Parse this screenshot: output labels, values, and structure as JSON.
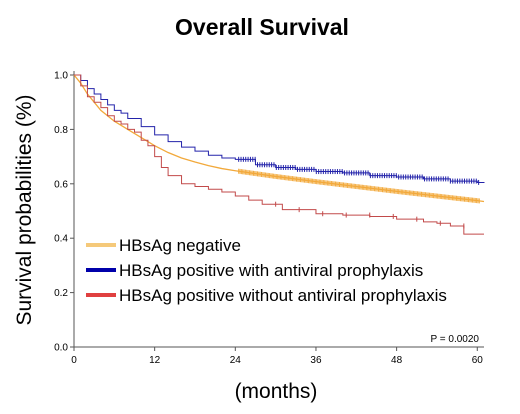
{
  "chart_data": {
    "type": "line",
    "title": "Overall Survival",
    "xlabel": "(months)",
    "ylabel": "Survival probabilities (%)",
    "xlim": [
      0,
      61
    ],
    "ylim": [
      0,
      1.0
    ],
    "x_ticks": [
      0,
      12,
      24,
      36,
      48,
      60
    ],
    "y_ticks": [
      0.0,
      0.2,
      0.4,
      0.6,
      0.8,
      1.0
    ],
    "y_tick_labels": [
      "0.0",
      "0.2",
      "0.4",
      "0.6",
      "0.8",
      "1.0"
    ],
    "legend_placement": "lower-left",
    "annotation": "P = 0.0020",
    "series": [
      {
        "name": "HBsAg negative",
        "color": "#f2a93b",
        "legend_color": "#f5c97a",
        "step": false,
        "x": [
          0,
          1,
          2,
          3,
          4,
          6,
          8,
          10,
          12,
          14,
          16,
          18,
          20,
          22,
          24,
          30,
          36,
          42,
          48,
          54,
          60,
          61
        ],
        "y": [
          1.0,
          0.97,
          0.93,
          0.9,
          0.87,
          0.83,
          0.8,
          0.77,
          0.74,
          0.715,
          0.695,
          0.68,
          0.667,
          0.656,
          0.648,
          0.627,
          0.608,
          0.59,
          0.572,
          0.555,
          0.538,
          0.535
        ]
      },
      {
        "name": "HBsAg positive with antiviral prophylaxis",
        "color": "#2323aa",
        "legend_color": "#0000aa",
        "step": true,
        "x": [
          0,
          1,
          2,
          3,
          4,
          5,
          6,
          7,
          8,
          10,
          12,
          14,
          16,
          18,
          20,
          22,
          24,
          27,
          30,
          33,
          36,
          40,
          44,
          48,
          52,
          56,
          60,
          61
        ],
        "y": [
          1.0,
          0.98,
          0.95,
          0.93,
          0.91,
          0.89,
          0.87,
          0.86,
          0.84,
          0.81,
          0.78,
          0.755,
          0.735,
          0.72,
          0.705,
          0.695,
          0.69,
          0.67,
          0.66,
          0.653,
          0.645,
          0.64,
          0.63,
          0.625,
          0.618,
          0.61,
          0.605,
          0.603
        ]
      },
      {
        "name": "HBsAg positive without antiviral prophylaxis",
        "color": "#c24a4a",
        "legend_color": "#e04040",
        "step": true,
        "x": [
          0,
          1,
          2,
          3,
          4,
          5,
          6,
          7,
          8,
          9,
          10,
          11,
          12,
          13,
          14,
          16,
          18,
          20,
          22,
          24,
          26,
          28,
          31,
          36,
          40,
          44,
          48,
          52,
          54,
          56,
          58,
          61
        ],
        "y": [
          1.0,
          0.96,
          0.92,
          0.9,
          0.88,
          0.85,
          0.83,
          0.82,
          0.8,
          0.79,
          0.76,
          0.74,
          0.7,
          0.66,
          0.63,
          0.6,
          0.59,
          0.58,
          0.57,
          0.555,
          0.54,
          0.525,
          0.505,
          0.49,
          0.485,
          0.48,
          0.47,
          0.46,
          0.455,
          0.445,
          0.415,
          0.415
        ]
      }
    ]
  }
}
